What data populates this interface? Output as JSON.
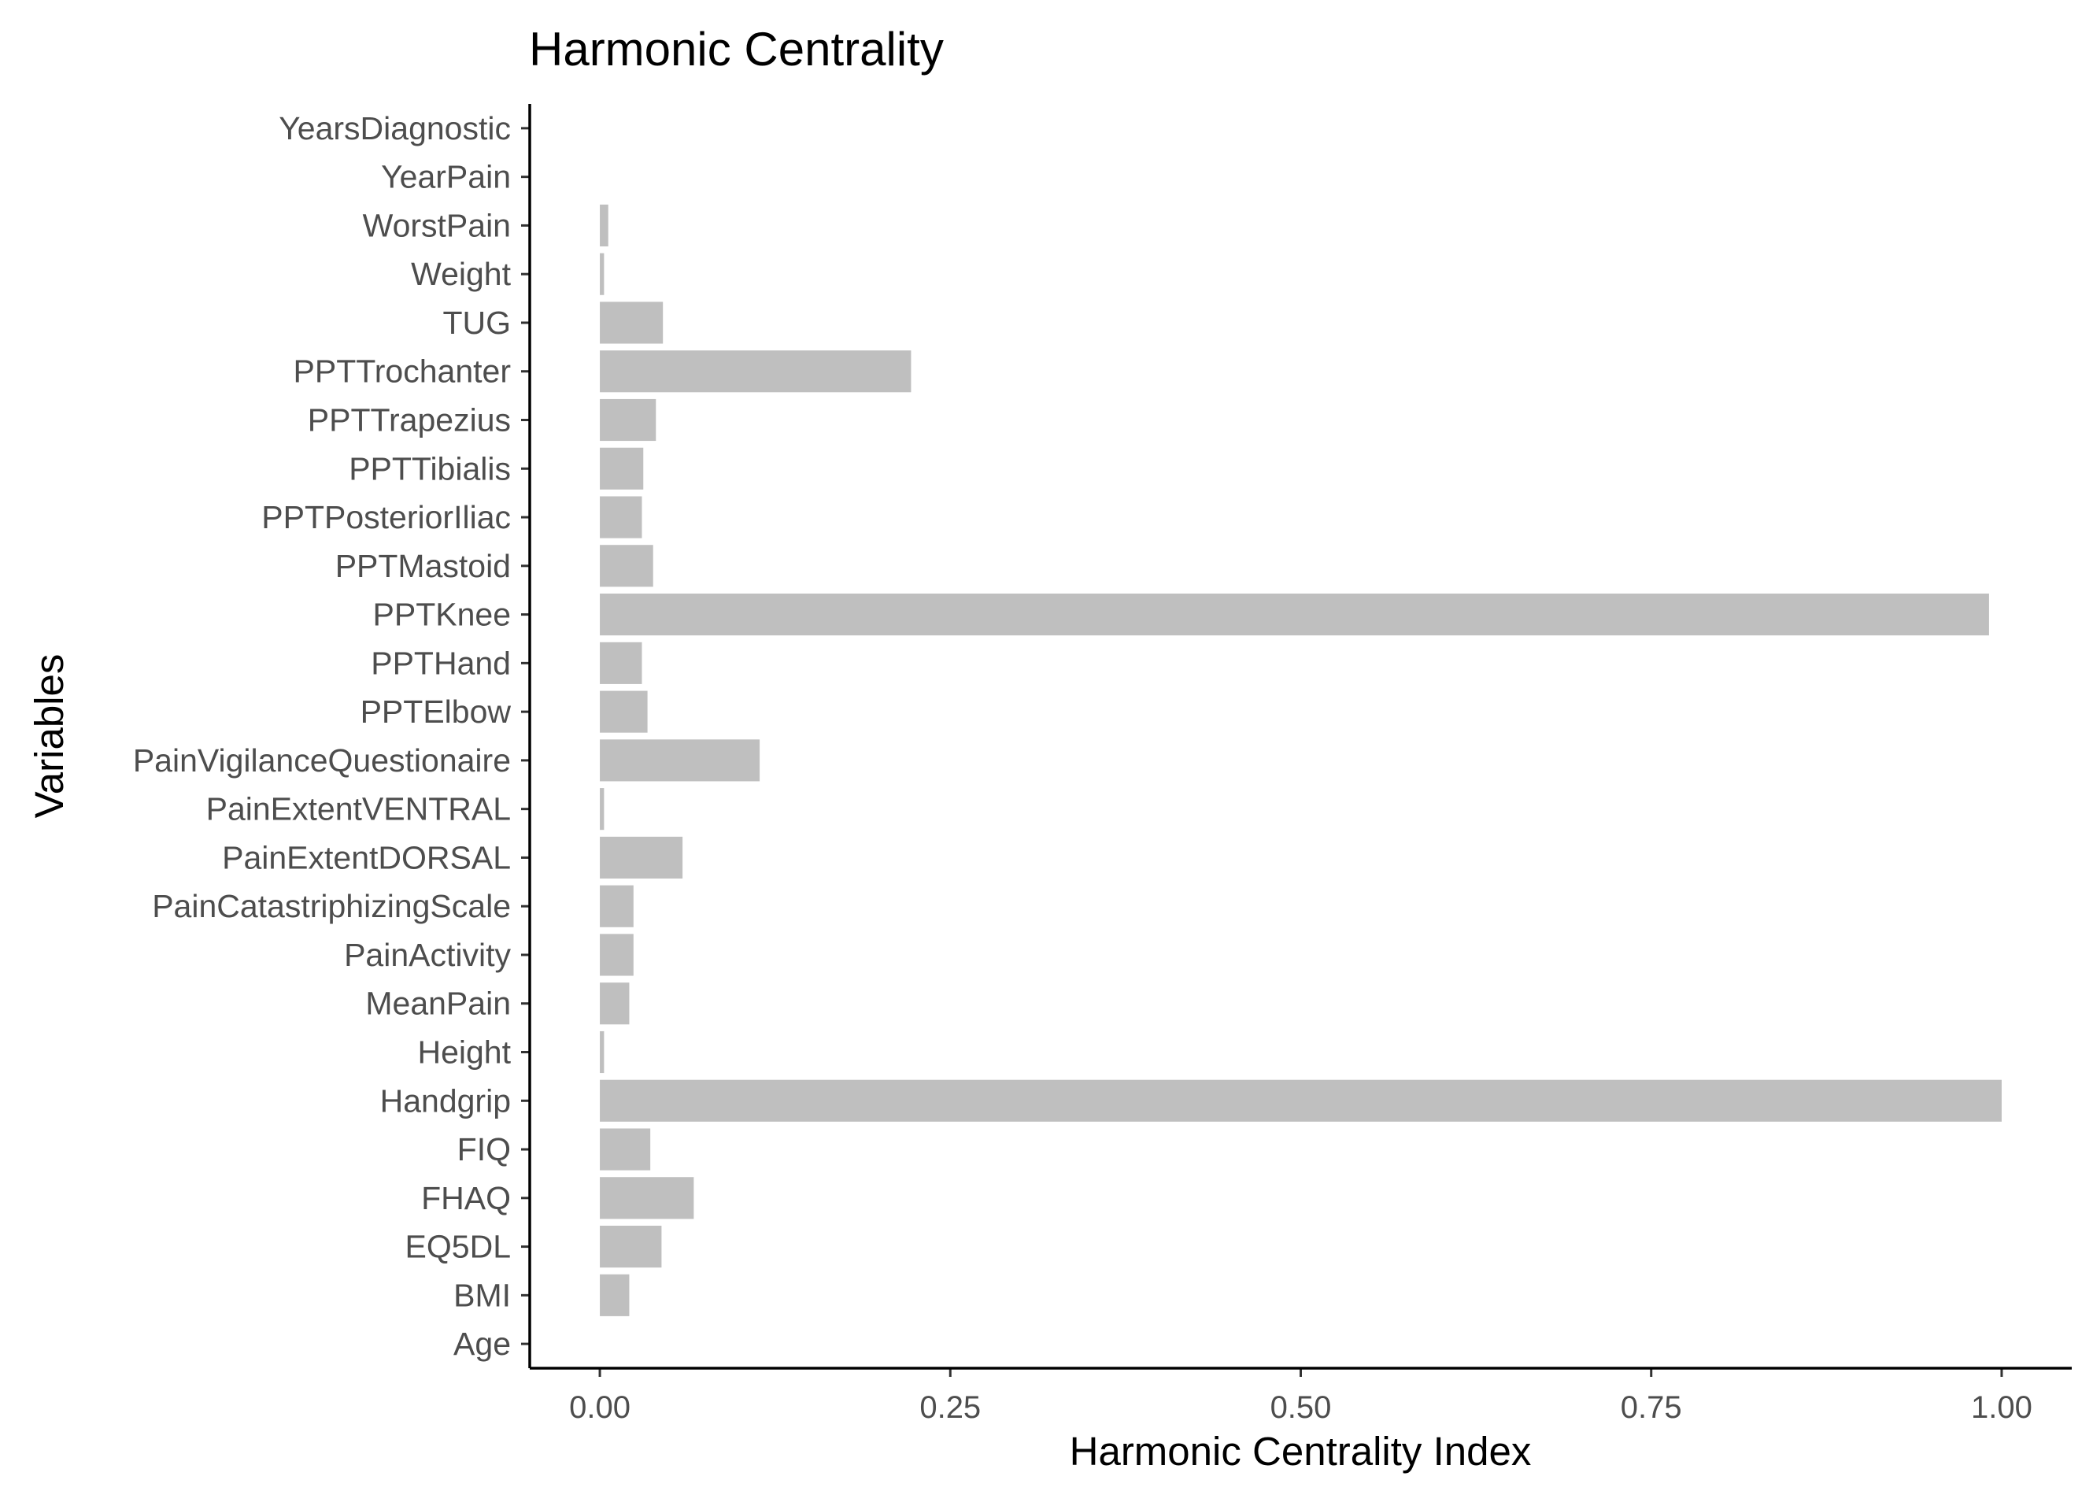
{
  "chart_data": {
    "type": "bar",
    "orientation": "horizontal",
    "title": "Harmonic Centrality",
    "xlabel": "Harmonic Centrality Index",
    "ylabel": "Variables",
    "xlim": [
      -0.05,
      1.05
    ],
    "x_ticks": [
      0,
      0.25,
      0.5,
      0.75,
      1
    ],
    "x_tick_labels": [
      "0.00",
      "0.25",
      "0.50",
      "0.75",
      "1.00"
    ],
    "grid": false,
    "legend": "none",
    "bar_color": "#bfbfbf",
    "categories": [
      "YearsDiagnostic",
      "YearPain",
      "WorstPain",
      "Weight",
      "TUG",
      "PPTTrochanter",
      "PPTTrapezius",
      "PPTTibialis",
      "PPTPosteriorIliac",
      "PPTMastoid",
      "PPTKnee",
      "PPTHand",
      "PPTElbow",
      "PainVigilanceQuestionaire",
      "PainExtentVENTRAL",
      "PainExtentDORSAL",
      "PainCatastriphizingScale",
      "PainActivity",
      "MeanPain",
      "Height",
      "Handgrip",
      "FIQ",
      "FHAQ",
      "EQ5DL",
      "BMI",
      "Age"
    ],
    "values": [
      0,
      0,
      0.006,
      0.003,
      0.045,
      0.222,
      0.04,
      0.031,
      0.03,
      0.038,
      0.991,
      0.03,
      0.034,
      0.114,
      0.003,
      0.059,
      0.024,
      0.024,
      0.021,
      0.003,
      1.0,
      0.036,
      0.067,
      0.044,
      0.021,
      0
    ]
  }
}
